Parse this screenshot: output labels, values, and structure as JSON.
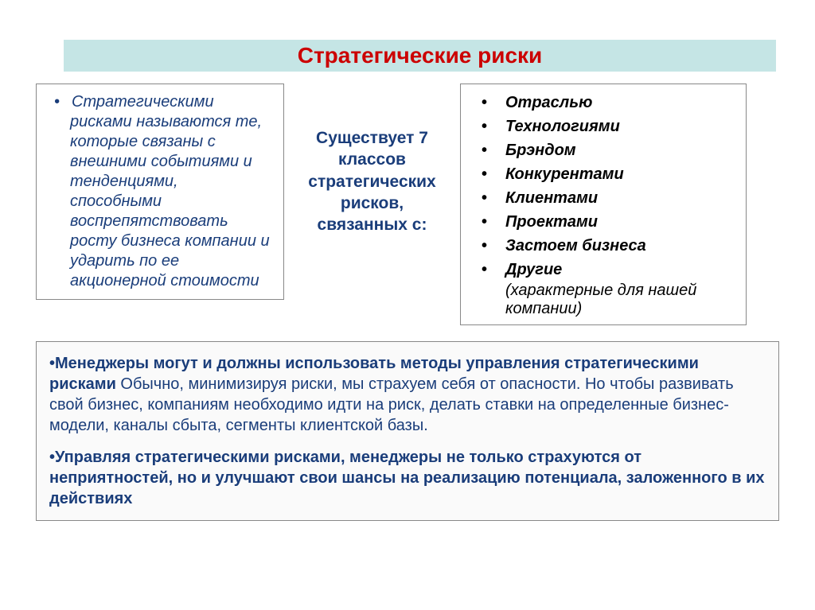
{
  "title": "Стратегические риски",
  "left_box": {
    "text": "Стратегическими рисками называются те, которые связаны с внешними событиями и тенденциями, способными воспрепятствовать росту бизнеса компании и ударить по ее акционерной стоимости"
  },
  "center": {
    "text": "Существует 7 классов стратегических рисков, связанных с:"
  },
  "right_box": {
    "items": [
      "Отраслью",
      "Технологиями",
      "Брэндом",
      "Конкурентами",
      "Клиентами",
      "Проектами",
      "Застоем бизнеса"
    ],
    "last_item": "Другие",
    "last_annotation": "(характерные для нашей компании)"
  },
  "bottom": {
    "para1_prefix": "•Менеджеры могут и должны использовать методы управления стратегическими рисками",
    "para1_rest": " Обычно, минимизируя риски, мы страхуем себя от опасности. Но чтобы развивать свой бизнес, компаниям необходимо идти на риск, делать ставки на определенные бизнес-модели, каналы сбыта, сегменты клиентской базы.",
    "para2": "•Управляя стратегическими рисками, менеджеры не только страхуются от неприятностей, но и улучшают свои шансы на реализацию потенциала, заложенного в их действиях"
  },
  "colors": {
    "title_bg": "#c5e5e5",
    "title_text": "#cc0000",
    "body_text": "#1a3d7a",
    "border": "#888888",
    "background": "#ffffff"
  }
}
